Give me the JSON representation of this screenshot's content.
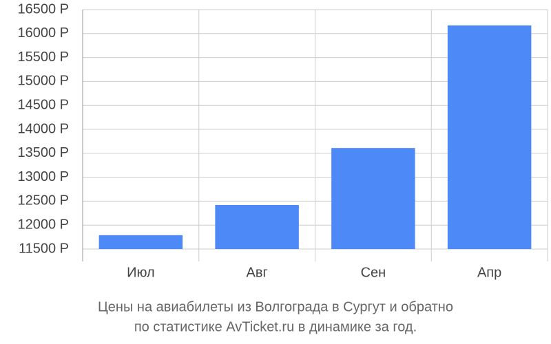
{
  "chart_data": {
    "type": "bar",
    "title": "Цены на авиабилеты из Волгограда в Сургут и обратно",
    "subtitle": "по статистике AvTicket.ru в динамике за год.",
    "categories": [
      "Июл",
      "Авг",
      "Сен",
      "Апр"
    ],
    "values": [
      11790,
      12420,
      13610,
      16170
    ],
    "color": "#4d8af8",
    "ylim": [
      11500,
      16500
    ],
    "yticks": [
      {
        "value": 11500,
        "label": "11500 Р"
      },
      {
        "value": 12000,
        "label": "12000 Р"
      },
      {
        "value": 12500,
        "label": "12500 Р"
      },
      {
        "value": 13000,
        "label": "13000 Р"
      },
      {
        "value": 13500,
        "label": "13500 Р"
      },
      {
        "value": 14000,
        "label": "14000 Р"
      },
      {
        "value": 14500,
        "label": "14500 Р"
      },
      {
        "value": 15000,
        "label": "15000 Р"
      },
      {
        "value": 15500,
        "label": "15500 Р"
      },
      {
        "value": 16000,
        "label": "16000 Р"
      },
      {
        "value": 16500,
        "label": "16500 Р"
      }
    ],
    "grid": true
  }
}
